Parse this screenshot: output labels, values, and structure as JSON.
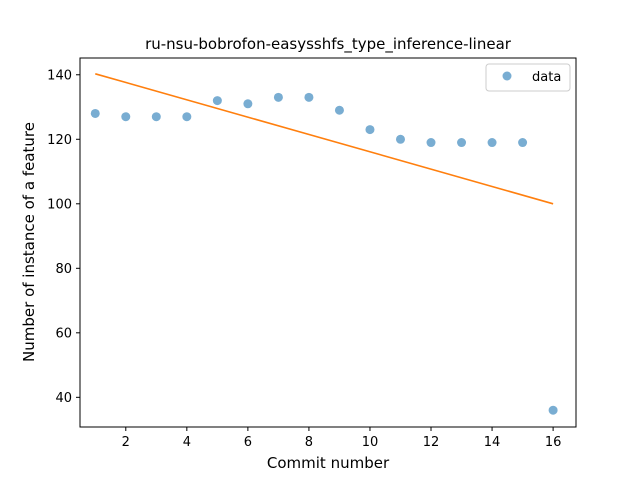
{
  "chart_data": {
    "type": "scatter",
    "title": "ru-nsu-bobrofon-easysshfs_type_inference-linear",
    "xlabel": "Commit number",
    "ylabel": "Number of instance of a feature",
    "xlim": [
      0.5,
      16.75
    ],
    "ylim": [
      30.8,
      145.2
    ],
    "xticks": [
      2,
      4,
      6,
      8,
      10,
      12,
      14,
      16
    ],
    "yticks": [
      40,
      60,
      80,
      100,
      120,
      140
    ],
    "grid": false,
    "legend_position": "upper right",
    "series": [
      {
        "name": "data",
        "kind": "scatter",
        "color": "#1f77b4",
        "x": [
          1,
          2,
          3,
          4,
          5,
          6,
          7,
          8,
          9,
          10,
          11,
          12,
          13,
          14,
          15,
          16
        ],
        "y": [
          128,
          127,
          127,
          127,
          132,
          131,
          133,
          133,
          129,
          123,
          120,
          119,
          119,
          119,
          119,
          36
        ]
      },
      {
        "kind": "line",
        "color": "#ff7f0e",
        "x": [
          1,
          16
        ],
        "y": [
          140.3,
          100
        ]
      }
    ]
  }
}
